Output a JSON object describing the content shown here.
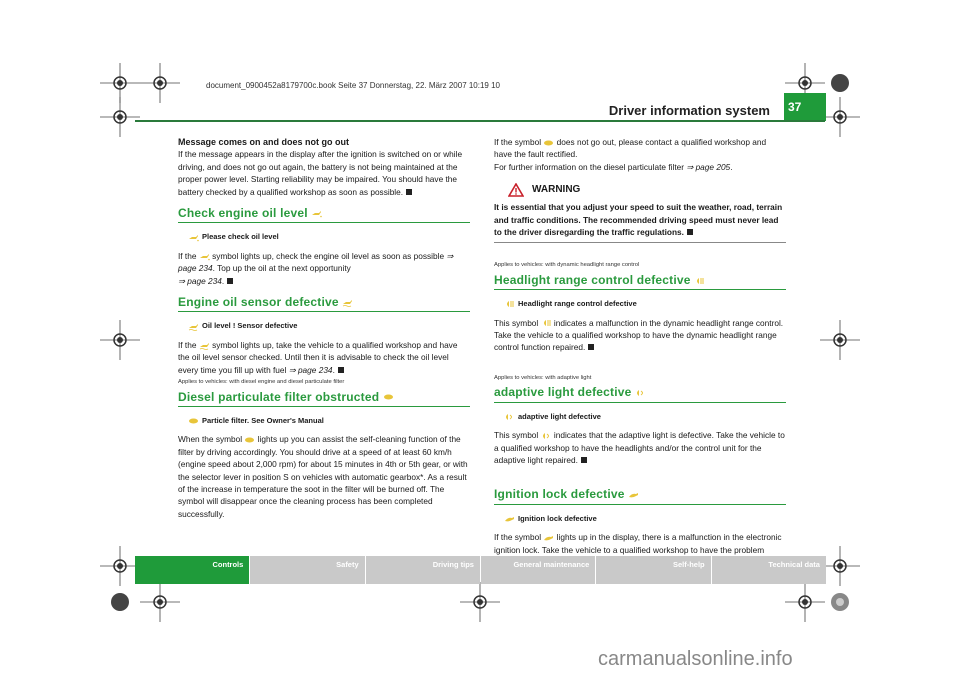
{
  "print_header": "document_0900452a8179700c.book  Seite 37  Donnerstag, 22. März 2007  10:19 10",
  "header": {
    "section_title": "Driver information system",
    "page_number": "37"
  },
  "left_column": {
    "battery": {
      "heading": "Message comes on and does not go out",
      "text": "If the message appears in the display after the ignition is switched on or while driving, and does not go out again, the battery is not being maintained at the proper power level. Starting reliability may be impaired. You should have the battery checked by a qualified workshop as soon as possible."
    },
    "oil_level": {
      "title": "Check engine oil level",
      "message": "Please check oil level",
      "text_1": "If the",
      "text_2": "symbol lights up, check the engine oil level as soon as possible",
      "ref_1": "⇒ page 234",
      "text_3": ". Top up the oil at the next opportunity",
      "ref_2": "⇒ page 234",
      "text_4": "."
    },
    "oil_sensor": {
      "title": "Engine oil sensor defective",
      "message": "Oil level ! Sensor defective",
      "text_1": "If the",
      "text_2": "symbol lights up, take the vehicle to a qualified workshop and have the oil level sensor checked. Until then it is advisable to check the oil level every time you fill up with fuel",
      "ref": "⇒ page 234",
      "text_3": "."
    },
    "particulate": {
      "applies": "Applies to vehicles: with diesel engine and diesel particulate filter",
      "title": "Diesel particulate filter obstructed",
      "message": "Particle filter. See Owner's Manual",
      "text_1": "When the symbol",
      "text_2": "lights up you can assist the self-cleaning function of the filter by driving accordingly. You should drive at a speed of at least 60 km/h (engine speed about 2,000 rpm) for about 15 minutes in 4th or 5th gear, or with the selector lever in position S on vehicles with automatic gearbox*. As a result of the increase in temperature the soot in the filter will be burned off. The symbol will disappear once the cleaning process has been completed successfully."
    }
  },
  "right_column": {
    "particulate_cont": {
      "text_1": "If the symbol",
      "text_2": "does not go out, please contact a qualified workshop and have the fault rectified.",
      "text_3": "For further information on the diesel particulate filter",
      "ref": "⇒ page 205",
      "text_4": "."
    },
    "warning": {
      "title": "WARNING",
      "text": "It is essential that you adjust your speed to suit the weather, road, terrain and traffic conditions. The recommended driving speed must never lead to the driver disregarding the traffic regulations."
    },
    "headlight_range": {
      "applies": "Applies to vehicles:  with dynamic headlight range control",
      "title": "Headlight range control defective",
      "message": "Headlight range control defective",
      "text_1": "This symbol",
      "text_2": "indicates a malfunction in the dynamic headlight range control. Take the vehicle to a qualified workshop to have the dynamic headlight range control function repaired."
    },
    "adaptive_light": {
      "applies": "Applies to vehicles:  with adaptive light",
      "title": "adaptive light defective",
      "message": "adaptive light defective",
      "text_1": "This symbol",
      "text_2": "indicates that the adaptive light is defective. Take the vehicle to a qualified workshop to have the headlights and/or the control unit for the adaptive light repaired."
    },
    "ignition_lock": {
      "title": "Ignition lock defective",
      "message": "Ignition lock defective",
      "text_1": "If the symbol",
      "text_2": "lights up in the display, there is a malfunction in the electronic ignition lock. Take the vehicle to a qualified workshop to have the problem remedied."
    }
  },
  "tabs": [
    "Controls",
    "Safety",
    "Driving tips",
    "General maintenance",
    "Self-help",
    "Technical data"
  ],
  "active_tab": "Controls",
  "watermark": "carmanualsonline.info",
  "colors": {
    "accent_green": "#1f9b3a",
    "heading_green": "#2a9a3e",
    "tab_grey": "#c9c9c9",
    "symbol_yellow": "#e8c53a"
  }
}
